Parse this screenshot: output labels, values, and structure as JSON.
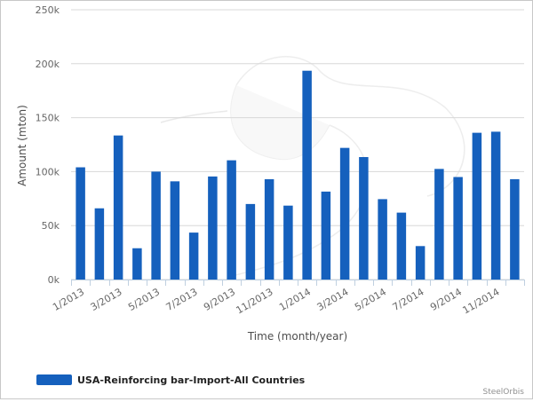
{
  "chart_data": {
    "type": "bar",
    "title": "",
    "xlabel": "Time (month/year)",
    "ylabel": "Amount (mton)",
    "ylim": [
      0,
      250000
    ],
    "yticks": [
      0,
      50000,
      100000,
      150000,
      200000,
      250000
    ],
    "ytick_labels": [
      "0k",
      "50k",
      "100k",
      "150k",
      "200k",
      "250k"
    ],
    "categories": [
      "1/2013",
      "2/2013",
      "3/2013",
      "4/2013",
      "5/2013",
      "6/2013",
      "7/2013",
      "8/2013",
      "9/2013",
      "10/2013",
      "11/2013",
      "12/2013",
      "1/2014",
      "2/2014",
      "3/2014",
      "4/2014",
      "5/2014",
      "6/2014",
      "7/2014",
      "8/2014",
      "9/2014",
      "10/2014",
      "11/2014",
      "12/2014"
    ],
    "xtick_labels": [
      "1/2013",
      "3/2013",
      "5/2013",
      "7/2013",
      "9/2013",
      "11/2013",
      "1/2014",
      "3/2014",
      "5/2014",
      "7/2014",
      "9/2014",
      "11/2014"
    ],
    "series": [
      {
        "name": "USA-Reinforcing bar-Import-All Countries",
        "color": "#1560bd",
        "values": [
          104000,
          66000,
          133500,
          29000,
          100000,
          91000,
          43500,
          95500,
          110500,
          70000,
          93000,
          68500,
          193500,
          81500,
          122000,
          113500,
          74500,
          62000,
          31000,
          102500,
          95000,
          136000,
          137000,
          93000
        ]
      }
    ],
    "grid": true,
    "legend_position": "bottom-left",
    "credit": "SteelOrbis"
  }
}
